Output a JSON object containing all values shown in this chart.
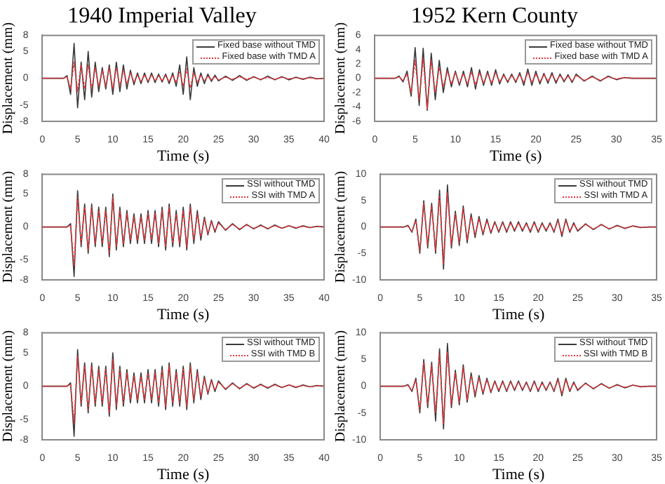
{
  "chart_data": [
    {
      "type": "line",
      "title": "1940 Imperial Valley",
      "xlabel": "Time (s)",
      "ylabel": "Displacement (mm)",
      "legend": "top right",
      "marker": "none",
      "x": [
        0,
        3,
        3.5,
        4,
        4.5,
        5,
        5.5,
        6,
        6.5,
        7,
        7.5,
        8,
        8.5,
        9,
        9.5,
        10,
        10.5,
        11,
        11.5,
        12,
        12.5,
        13,
        13.5,
        14,
        14.5,
        15,
        15.5,
        16,
        16.5,
        17,
        17.5,
        18,
        18.5,
        19,
        19.5,
        20,
        20.5,
        21,
        21.5,
        22,
        22.5,
        23,
        23.5,
        24,
        24.5,
        25,
        26,
        27,
        28,
        29,
        30,
        31,
        32,
        33,
        34,
        35,
        36,
        37,
        38,
        39,
        40
      ],
      "series": [
        {
          "name": "Fixed base without TMD",
          "color": "#3a3a3a",
          "line_style": "solid",
          "values": [
            0,
            0,
            0.5,
            -3,
            6.5,
            -5.5,
            3,
            -4,
            5,
            -3.5,
            3,
            -2.5,
            2,
            -2,
            2.5,
            -3,
            3,
            -2.5,
            2.5,
            -2,
            1.5,
            -1.2,
            1,
            -1,
            1,
            -0.8,
            1,
            -0.8,
            0.8,
            -0.7,
            0.8,
            -1,
            1,
            -1.5,
            2.5,
            -3,
            4,
            -4,
            2,
            -1.5,
            1,
            -1,
            0.8,
            -0.6,
            0.6,
            -0.5,
            0.4,
            -0.4,
            0.5,
            -0.4,
            0.3,
            -0.3,
            0.4,
            -0.3,
            0.3,
            -0.3,
            0.2,
            -0.2,
            0.2,
            -0.1,
            0
          ]
        },
        {
          "name": "Fixed base with TMD A",
          "color": "#e8343a",
          "line_style": "dotted",
          "values": [
            0,
            0,
            0.3,
            -2,
            3,
            -2.5,
            2.5,
            -2,
            2.5,
            -2,
            2,
            -1.5,
            1.5,
            -1.5,
            2,
            -2,
            2,
            -1.5,
            1.5,
            -1,
            1,
            -0.7,
            0.6,
            -0.6,
            0.6,
            -0.5,
            0.6,
            -0.5,
            0.5,
            -0.5,
            0.5,
            -0.6,
            0.6,
            -0.8,
            1.2,
            -1.5,
            1.8,
            -1.8,
            1,
            -0.8,
            0.6,
            -0.5,
            0.4,
            -0.3,
            0.3,
            -0.3,
            0.2,
            -0.2,
            0.3,
            -0.2,
            0.2,
            -0.2,
            0.2,
            -0.2,
            0.2,
            -0.1,
            0.1,
            -0.1,
            0.1,
            -0.1,
            0
          ]
        }
      ],
      "xlim": [
        0,
        40
      ],
      "xticks": [
        0,
        5,
        10,
        15,
        20,
        25,
        30,
        35,
        40
      ],
      "ylim": [
        -8,
        8
      ],
      "yticks": [
        -8,
        -5,
        0,
        5,
        8
      ]
    },
    {
      "type": "line",
      "title": "1952 Kern County",
      "xlabel": "Time (s)",
      "ylabel": "Displacement (mm)",
      "legend": "top right",
      "marker": "none",
      "x": [
        0,
        2.5,
        3,
        3.5,
        4,
        4.5,
        5,
        5.5,
        6,
        6.5,
        7,
        7.5,
        8,
        8.5,
        9,
        9.5,
        10,
        10.5,
        11,
        11.5,
        12,
        12.5,
        13,
        13.5,
        14,
        14.5,
        15,
        15.5,
        16,
        16.5,
        17,
        17.5,
        18,
        18.5,
        19,
        19.5,
        20,
        20.5,
        21,
        21.5,
        22,
        22.5,
        23,
        23.5,
        24,
        24.5,
        25,
        26,
        27,
        28,
        29,
        30,
        31,
        32,
        33,
        34,
        35
      ],
      "series": [
        {
          "name": "Fixed base without TMD",
          "color": "#3a3a3a",
          "line_style": "solid",
          "values": [
            0,
            0,
            0.3,
            -0.5,
            1,
            -2.5,
            4.3,
            -3.8,
            4.2,
            -4.5,
            3.5,
            -3,
            2.5,
            -2,
            1.5,
            -1.2,
            1,
            -1,
            1,
            -1.2,
            1.5,
            -1.5,
            1.2,
            -1,
            1,
            -1,
            1.2,
            -0.8,
            0.6,
            -0.6,
            0.6,
            -0.6,
            0.8,
            -1,
            1.3,
            -1,
            1,
            -0.8,
            0.7,
            -0.7,
            0.8,
            -0.7,
            0.6,
            -0.5,
            0.5,
            -0.6,
            0.6,
            -0.4,
            0.3,
            -0.4,
            0.3,
            -0.2,
            0.1,
            0,
            0,
            0,
            0
          ]
        },
        {
          "name": "Fixed base with TMD A",
          "color": "#e8343a",
          "line_style": "dotted",
          "values": [
            0,
            0,
            0.2,
            -0.3,
            0.6,
            -2,
            2.5,
            -3,
            2.8,
            -4.3,
            2.5,
            -2,
            1.5,
            -1.2,
            1,
            -0.8,
            0.8,
            -0.7,
            0.7,
            -0.8,
            0.9,
            -0.9,
            0.8,
            -0.7,
            0.7,
            -0.7,
            0.8,
            -0.5,
            0.4,
            -0.4,
            0.4,
            -0.4,
            0.5,
            -0.6,
            0.8,
            -0.6,
            0.6,
            -0.5,
            0.5,
            -0.4,
            0.5,
            -0.4,
            0.4,
            -0.3,
            0.3,
            -0.4,
            0.4,
            -0.3,
            0.2,
            -0.3,
            0.2,
            -0.1,
            0.1,
            0,
            0,
            0,
            0
          ]
        }
      ],
      "xlim": [
        0,
        35
      ],
      "xticks": [
        0,
        5,
        10,
        15,
        20,
        25,
        30,
        35
      ],
      "ylim": [
        -6,
        6
      ],
      "yticks": [
        -6,
        -4,
        -2,
        0,
        2,
        4,
        6
      ]
    },
    {
      "type": "line",
      "xlabel": "Time (s)",
      "ylabel": "Displacement (mm)",
      "legend": "top right",
      "marker": "none",
      "x": [
        0,
        3,
        3.5,
        4,
        4.5,
        5,
        5.5,
        6,
        6.5,
        7,
        7.5,
        8,
        8.5,
        9,
        9.5,
        10,
        10.5,
        11,
        11.5,
        12,
        12.5,
        13,
        13.5,
        14,
        14.5,
        15,
        15.5,
        16,
        16.5,
        17,
        17.5,
        18,
        18.5,
        19,
        19.5,
        20,
        20.5,
        21,
        21.5,
        22,
        22.5,
        23,
        23.5,
        24,
        24.5,
        25,
        26,
        27,
        28,
        29,
        30,
        31,
        32,
        33,
        34,
        35,
        36,
        37,
        38,
        39,
        40
      ],
      "series": [
        {
          "name": "SSI without TMD",
          "color": "#3a3a3a",
          "line_style": "solid",
          "values": [
            0,
            0,
            0,
            0.5,
            -7.5,
            5.5,
            -3,
            3.5,
            -4,
            3.5,
            -3,
            3,
            -3,
            3,
            -4.5,
            5,
            -3.5,
            3,
            -3,
            2.5,
            -2.5,
            2,
            -2.5,
            2,
            -2.5,
            2.5,
            -2.5,
            2.5,
            -3,
            3,
            -3.5,
            3.5,
            -3,
            2.5,
            -3,
            3,
            -3.5,
            3.5,
            -2.5,
            2.5,
            -2,
            1.5,
            -1.2,
            1,
            -0.8,
            0.8,
            -0.5,
            0.5,
            -0.4,
            0.4,
            -0.3,
            0.3,
            -0.3,
            0.3,
            -0.2,
            0.2,
            -0.2,
            0.2,
            -0.1,
            0.1,
            0
          ]
        },
        {
          "name": "SSI with TMD A",
          "color": "#e8343a",
          "line_style": "dotted",
          "values": [
            0,
            0,
            0,
            0.3,
            -6,
            4.5,
            -2.5,
            3,
            -3.5,
            3,
            -2.5,
            2.5,
            -2.5,
            2.5,
            -4,
            4.5,
            -3,
            2.5,
            -2.5,
            2,
            -2,
            1.5,
            -2,
            1.5,
            -2,
            2,
            -2,
            2,
            -2.5,
            2.5,
            -3,
            3,
            -2.5,
            2,
            -2.5,
            2.5,
            -3,
            3,
            -2,
            2,
            -1.5,
            1.2,
            -1,
            0.8,
            -0.6,
            0.6,
            -0.4,
            0.4,
            -0.3,
            0.3,
            -0.2,
            0.2,
            -0.2,
            0.2,
            -0.2,
            0.2,
            -0.1,
            0.1,
            -0.1,
            0.1,
            0
          ]
        }
      ],
      "xlim": [
        0,
        40
      ],
      "xticks": [
        0,
        5,
        10,
        15,
        20,
        25,
        30,
        35,
        40
      ],
      "ylim": [
        -8,
        8
      ],
      "yticks": [
        -8,
        -5,
        0,
        5,
        8
      ]
    },
    {
      "type": "line",
      "xlabel": "Time (s)",
      "ylabel": "Displacement (mm)",
      "legend": "top right",
      "marker": "none",
      "x": [
        0,
        2.5,
        3,
        3.5,
        4,
        4.5,
        5,
        5.5,
        6,
        6.5,
        7,
        7.5,
        8,
        8.5,
        9,
        9.5,
        10,
        10.5,
        11,
        11.5,
        12,
        12.5,
        13,
        13.5,
        14,
        14.5,
        15,
        15.5,
        16,
        16.5,
        17,
        17.5,
        18,
        18.5,
        19,
        19.5,
        20,
        20.5,
        21,
        21.5,
        22,
        22.5,
        23,
        23.5,
        24,
        24.5,
        25,
        26,
        27,
        28,
        29,
        30,
        31,
        32,
        33,
        34,
        35
      ],
      "series": [
        {
          "name": "SSI without TMD",
          "color": "#3a3a3a",
          "line_style": "solid",
          "values": [
            0,
            0,
            0,
            0.3,
            -1,
            1.5,
            -5,
            5,
            -4,
            4.5,
            -5,
            7,
            -8,
            8,
            -4,
            3,
            -3.5,
            4,
            -3,
            2.5,
            -2,
            2,
            -1.5,
            1.5,
            -1.2,
            1,
            -1,
            1,
            -1,
            1,
            -0.8,
            1,
            -0.8,
            0.8,
            -1,
            1,
            -1,
            0.8,
            -0.8,
            0.8,
            -1,
            1.5,
            -1.8,
            1.5,
            -1,
            0.8,
            -0.8,
            0.6,
            -0.5,
            0.5,
            -0.4,
            0.3,
            -0.3,
            0.2,
            -0.1,
            0,
            0
          ]
        },
        {
          "name": "SSI with TMD A",
          "color": "#e8343a",
          "line_style": "dotted",
          "values": [
            0,
            0,
            0,
            0.2,
            -0.8,
            1.2,
            -4.5,
            4.5,
            -3.5,
            4,
            -4.5,
            6,
            -7,
            6.5,
            -3.5,
            2.5,
            -3,
            3.5,
            -2.5,
            2,
            -1.5,
            1.5,
            -1.2,
            1.2,
            -1,
            0.8,
            -0.8,
            0.8,
            -0.8,
            0.8,
            -0.6,
            0.8,
            -0.6,
            0.6,
            -0.8,
            0.8,
            -0.8,
            0.6,
            -0.6,
            0.6,
            -0.8,
            1.2,
            -1.4,
            1.2,
            -0.8,
            0.6,
            -0.6,
            0.5,
            -0.4,
            0.4,
            -0.3,
            0.2,
            -0.2,
            0.2,
            -0.1,
            0,
            0
          ]
        }
      ],
      "xlim": [
        0,
        35
      ],
      "xticks": [
        0,
        5,
        10,
        15,
        20,
        25,
        30,
        35
      ],
      "ylim": [
        -10,
        10
      ],
      "yticks": [
        -10,
        -5,
        0,
        5,
        10
      ]
    },
    {
      "type": "line",
      "xlabel": "Time (s)",
      "ylabel": "Displacement (mm)",
      "legend": "top right",
      "marker": "none",
      "x": [
        0,
        3,
        3.5,
        4,
        4.5,
        5,
        5.5,
        6,
        6.5,
        7,
        7.5,
        8,
        8.5,
        9,
        9.5,
        10,
        10.5,
        11,
        11.5,
        12,
        12.5,
        13,
        13.5,
        14,
        14.5,
        15,
        15.5,
        16,
        16.5,
        17,
        17.5,
        18,
        18.5,
        19,
        19.5,
        20,
        20.5,
        21,
        21.5,
        22,
        22.5,
        23,
        23.5,
        24,
        24.5,
        25,
        26,
        27,
        28,
        29,
        30,
        31,
        32,
        33,
        34,
        35,
        36,
        37,
        38,
        39,
        40
      ],
      "series": [
        {
          "name": "SSI without TMD",
          "color": "#3a3a3a",
          "line_style": "solid",
          "values": [
            0,
            0,
            0,
            0.5,
            -7.5,
            5.5,
            -3,
            3.5,
            -4,
            3.5,
            -3,
            3,
            -3,
            3,
            -4.5,
            5,
            -3.5,
            3,
            -3,
            2.5,
            -2.5,
            2,
            -2.5,
            2,
            -2.5,
            2.5,
            -2.5,
            2.5,
            -3,
            3,
            -3.5,
            3.5,
            -3,
            2.5,
            -3,
            3,
            -3.5,
            3.5,
            -2.5,
            2.5,
            -2,
            1.5,
            -1.2,
            1,
            -0.8,
            0.8,
            -0.5,
            0.5,
            -0.4,
            0.4,
            -0.3,
            0.3,
            -0.3,
            0.3,
            -0.2,
            0.2,
            -0.2,
            0.2,
            -0.1,
            0.1,
            0
          ]
        },
        {
          "name": "SSI with TMD B",
          "color": "#e8343a",
          "line_style": "dotted",
          "values": [
            0,
            0,
            0,
            0.3,
            -5.5,
            4.5,
            -2.5,
            3,
            -3.5,
            3,
            -2.5,
            2.5,
            -2.5,
            2.5,
            -4,
            4,
            -3,
            2.5,
            -2.5,
            2,
            -2,
            1.5,
            -2,
            1.5,
            -2,
            2,
            -2,
            2,
            -2.5,
            2.5,
            -3,
            3,
            -2.5,
            2,
            -2.5,
            2.5,
            -3,
            3,
            -2,
            2,
            -1.5,
            1.2,
            -1,
            0.8,
            -0.6,
            0.6,
            -0.4,
            0.4,
            -0.3,
            0.3,
            -0.2,
            0.2,
            -0.2,
            0.2,
            -0.2,
            0.2,
            -0.1,
            0.1,
            -0.1,
            0.1,
            0
          ]
        }
      ],
      "xlim": [
        0,
        40
      ],
      "xticks": [
        0,
        5,
        10,
        15,
        20,
        25,
        30,
        35,
        40
      ],
      "ylim": [
        -8,
        8
      ],
      "yticks": [
        -8,
        -5,
        0,
        5,
        8
      ]
    },
    {
      "type": "line",
      "xlabel": "Time (s)",
      "ylabel": "Displacement (mm)",
      "legend": "top right",
      "marker": "none",
      "x": [
        0,
        2.5,
        3,
        3.5,
        4,
        4.5,
        5,
        5.5,
        6,
        6.5,
        7,
        7.5,
        8,
        8.5,
        9,
        9.5,
        10,
        10.5,
        11,
        11.5,
        12,
        12.5,
        13,
        13.5,
        14,
        14.5,
        15,
        15.5,
        16,
        16.5,
        17,
        17.5,
        18,
        18.5,
        19,
        19.5,
        20,
        20.5,
        21,
        21.5,
        22,
        22.5,
        23,
        23.5,
        24,
        24.5,
        25,
        26,
        27,
        28,
        29,
        30,
        31,
        32,
        33,
        34,
        35
      ],
      "series": [
        {
          "name": "SSI without TMD",
          "color": "#3a3a3a",
          "line_style": "solid",
          "values": [
            0,
            0,
            0,
            0.3,
            -1,
            1.5,
            -5,
            5,
            -4,
            4.5,
            -6.5,
            7,
            -8,
            8,
            -4,
            3,
            -3.5,
            4,
            -3,
            2.5,
            -2,
            2,
            -1.5,
            1.5,
            -1.2,
            1,
            -1,
            1,
            -1,
            1,
            -0.8,
            1,
            -0.8,
            0.8,
            -1,
            1,
            -1,
            0.8,
            -0.8,
            0.8,
            -1,
            1.5,
            -1.8,
            1.5,
            -1,
            0.8,
            -0.8,
            0.6,
            -0.5,
            0.5,
            -0.4,
            0.3,
            -0.3,
            0.2,
            -0.1,
            0,
            0
          ]
        },
        {
          "name": "SSI with TMD B",
          "color": "#e8343a",
          "line_style": "dotted",
          "values": [
            0,
            0,
            0,
            0.2,
            -0.8,
            1.2,
            -4.5,
            4.5,
            -3.5,
            4,
            -5,
            6,
            -7,
            6.5,
            -3.5,
            2.5,
            -3,
            3.5,
            -2.5,
            2,
            -1.5,
            1.5,
            -1.2,
            1.2,
            -1,
            0.8,
            -0.8,
            0.8,
            -0.8,
            0.8,
            -0.6,
            0.8,
            -0.6,
            0.6,
            -0.8,
            0.8,
            -0.8,
            0.6,
            -0.6,
            0.6,
            -0.8,
            1.2,
            -1.4,
            1.2,
            -0.8,
            0.6,
            -0.6,
            0.5,
            -0.4,
            0.4,
            -0.3,
            0.2,
            -0.2,
            0.2,
            -0.1,
            0,
            0
          ]
        }
      ],
      "xlim": [
        0,
        35
      ],
      "xticks": [
        0,
        5,
        10,
        15,
        20,
        25,
        30,
        35
      ],
      "ylim": [
        -10,
        10
      ],
      "yticks": [
        -10,
        -5,
        0,
        5,
        10
      ]
    }
  ]
}
